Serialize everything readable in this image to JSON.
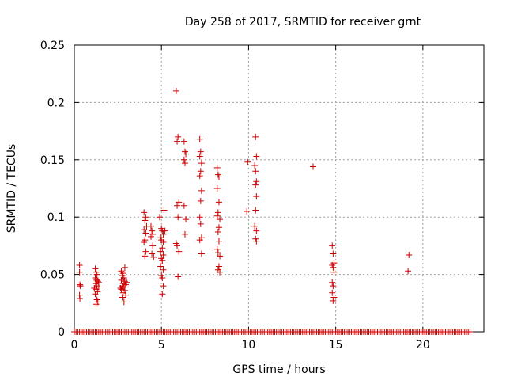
{
  "chart_data": {
    "type": "scatter",
    "title": "Day 258 of 2017, SRMTID for receiver grnt",
    "xlabel": "GPS time / hours",
    "ylabel": "SRMTID / TECUs",
    "xlim": [
      0,
      23.5
    ],
    "ylim": [
      0,
      0.25
    ],
    "xticks": [
      0,
      5,
      10,
      15,
      20
    ],
    "yticks": [
      0,
      0.05,
      0.1,
      0.15,
      0.2,
      0.25
    ],
    "xtick_labels": [
      "0",
      "5",
      "10",
      "15",
      "20"
    ],
    "ytick_labels": [
      "0",
      "0.05",
      "0.1",
      "0.15",
      "0.2",
      "0.25"
    ],
    "grid": true,
    "marker": "+",
    "color": "#cc0000",
    "zero_line": {
      "x_from": 0.0,
      "x_to": 22.7,
      "y": 0,
      "step": 0.1
    },
    "points": [
      [
        0.3,
        0.058
      ],
      [
        0.3,
        0.052
      ],
      [
        0.32,
        0.041
      ],
      [
        0.35,
        0.04
      ],
      [
        0.3,
        0.032
      ],
      [
        0.32,
        0.029
      ],
      [
        1.2,
        0.055
      ],
      [
        1.25,
        0.052
      ],
      [
        1.3,
        0.05
      ],
      [
        1.2,
        0.047
      ],
      [
        1.28,
        0.045
      ],
      [
        1.35,
        0.044
      ],
      [
        1.22,
        0.042
      ],
      [
        1.3,
        0.04
      ],
      [
        1.4,
        0.039
      ],
      [
        1.25,
        0.037
      ],
      [
        1.33,
        0.035
      ],
      [
        1.2,
        0.033
      ],
      [
        1.3,
        0.028
      ],
      [
        1.35,
        0.026
      ],
      [
        1.25,
        0.024
      ],
      [
        1.4,
        0.043
      ],
      [
        1.15,
        0.038
      ],
      [
        2.7,
        0.053
      ],
      [
        2.8,
        0.051
      ],
      [
        2.9,
        0.056
      ],
      [
        2.75,
        0.049
      ],
      [
        2.85,
        0.047
      ],
      [
        2.7,
        0.045
      ],
      [
        2.9,
        0.044
      ],
      [
        2.8,
        0.042
      ],
      [
        2.95,
        0.041
      ],
      [
        2.75,
        0.04
      ],
      [
        2.85,
        0.039
      ],
      [
        2.7,
        0.037
      ],
      [
        2.9,
        0.036
      ],
      [
        2.8,
        0.034
      ],
      [
        2.95,
        0.032
      ],
      [
        2.75,
        0.03
      ],
      [
        2.85,
        0.026
      ],
      [
        3.0,
        0.043
      ],
      [
        2.65,
        0.038
      ],
      [
        4.0,
        0.104
      ],
      [
        4.1,
        0.1
      ],
      [
        4.05,
        0.097
      ],
      [
        4.15,
        0.092
      ],
      [
        4.0,
        0.089
      ],
      [
        4.1,
        0.086
      ],
      [
        4.05,
        0.08
      ],
      [
        4.0,
        0.078
      ],
      [
        4.1,
        0.07
      ],
      [
        4.05,
        0.066
      ],
      [
        4.4,
        0.092
      ],
      [
        4.45,
        0.088
      ],
      [
        4.5,
        0.085
      ],
      [
        4.4,
        0.083
      ],
      [
        4.5,
        0.075
      ],
      [
        4.45,
        0.068
      ],
      [
        4.55,
        0.065
      ],
      [
        4.9,
        0.1
      ],
      [
        5.0,
        0.09
      ],
      [
        5.05,
        0.088
      ],
      [
        5.1,
        0.085
      ],
      [
        4.95,
        0.082
      ],
      [
        5.0,
        0.08
      ],
      [
        5.1,
        0.078
      ],
      [
        5.05,
        0.073
      ],
      [
        4.95,
        0.07
      ],
      [
        5.1,
        0.067
      ],
      [
        5.0,
        0.064
      ],
      [
        5.05,
        0.062
      ],
      [
        4.95,
        0.057
      ],
      [
        5.1,
        0.054
      ],
      [
        5.0,
        0.049
      ],
      [
        5.05,
        0.047
      ],
      [
        5.1,
        0.04
      ],
      [
        5.05,
        0.033
      ],
      [
        5.15,
        0.106
      ],
      [
        5.2,
        0.088
      ],
      [
        5.85,
        0.21
      ],
      [
        5.95,
        0.17
      ],
      [
        5.9,
        0.166
      ],
      [
        6.0,
        0.113
      ],
      [
        5.9,
        0.11
      ],
      [
        5.95,
        0.1
      ],
      [
        5.85,
        0.077
      ],
      [
        5.9,
        0.075
      ],
      [
        6.0,
        0.07
      ],
      [
        5.95,
        0.048
      ],
      [
        6.3,
        0.166
      ],
      [
        6.35,
        0.157
      ],
      [
        6.4,
        0.155
      ],
      [
        6.3,
        0.15
      ],
      [
        6.35,
        0.147
      ],
      [
        6.3,
        0.11
      ],
      [
        6.4,
        0.098
      ],
      [
        6.35,
        0.085
      ],
      [
        7.2,
        0.168
      ],
      [
        7.25,
        0.157
      ],
      [
        7.2,
        0.153
      ],
      [
        7.3,
        0.147
      ],
      [
        7.25,
        0.14
      ],
      [
        7.2,
        0.136
      ],
      [
        7.3,
        0.123
      ],
      [
        7.25,
        0.114
      ],
      [
        7.2,
        0.1
      ],
      [
        7.25,
        0.094
      ],
      [
        7.3,
        0.082
      ],
      [
        7.2,
        0.08
      ],
      [
        7.3,
        0.068
      ],
      [
        8.2,
        0.143
      ],
      [
        8.25,
        0.137
      ],
      [
        8.3,
        0.135
      ],
      [
        8.2,
        0.125
      ],
      [
        8.3,
        0.113
      ],
      [
        8.25,
        0.104
      ],
      [
        8.2,
        0.101
      ],
      [
        8.35,
        0.098
      ],
      [
        8.3,
        0.091
      ],
      [
        8.25,
        0.087
      ],
      [
        8.3,
        0.079
      ],
      [
        8.2,
        0.072
      ],
      [
        8.25,
        0.069
      ],
      [
        8.35,
        0.066
      ],
      [
        8.3,
        0.057
      ],
      [
        8.25,
        0.054
      ],
      [
        8.35,
        0.052
      ],
      [
        9.95,
        0.148
      ],
      [
        9.9,
        0.105
      ],
      [
        10.4,
        0.17
      ],
      [
        10.45,
        0.153
      ],
      [
        10.35,
        0.145
      ],
      [
        10.4,
        0.14
      ],
      [
        10.45,
        0.131
      ],
      [
        10.4,
        0.128
      ],
      [
        10.45,
        0.118
      ],
      [
        10.4,
        0.106
      ],
      [
        10.35,
        0.092
      ],
      [
        10.45,
        0.088
      ],
      [
        10.4,
        0.081
      ],
      [
        10.45,
        0.079
      ],
      [
        13.7,
        0.144
      ],
      [
        14.8,
        0.075
      ],
      [
        14.85,
        0.068
      ],
      [
        14.9,
        0.06
      ],
      [
        14.8,
        0.058
      ],
      [
        14.85,
        0.056
      ],
      [
        14.9,
        0.052
      ],
      [
        14.8,
        0.043
      ],
      [
        14.85,
        0.04
      ],
      [
        14.8,
        0.034
      ],
      [
        14.9,
        0.03
      ],
      [
        14.85,
        0.027
      ],
      [
        19.2,
        0.067
      ],
      [
        19.15,
        0.053
      ]
    ]
  }
}
